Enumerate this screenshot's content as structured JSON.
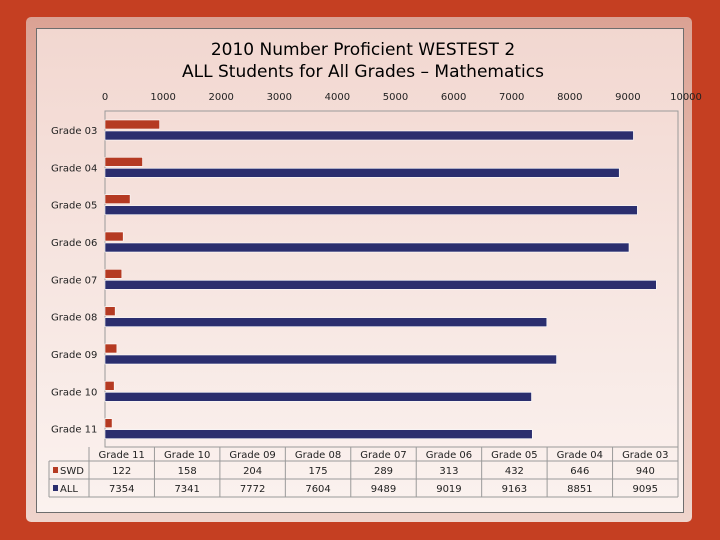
{
  "chart_data": {
    "type": "bar",
    "orientation": "horizontal",
    "title": "2010 Number Proficient WESTEST 2",
    "subtitle": "ALL Students for All Grades – Mathematics",
    "categories": [
      "Grade 11",
      "Grade 10",
      "Grade 09",
      "Grade 08",
      "Grade 07",
      "Grade 06",
      "Grade 05",
      "Grade 04",
      "Grade 03"
    ],
    "series": [
      {
        "name": "SWD",
        "values": [
          122,
          158,
          204,
          175,
          289,
          313,
          432,
          646,
          940
        ],
        "color": "#b53a22"
      },
      {
        "name": "ALL",
        "values": [
          7354,
          7341,
          7772,
          7604,
          9489,
          9019,
          9163,
          8851,
          9095
        ],
        "color": "#2b2e6e"
      }
    ],
    "xlim": [
      0,
      10000
    ],
    "x_ticks": [
      "0",
      "1000",
      "2000",
      "3000",
      "4000",
      "5000",
      "6000",
      "7000",
      "8000",
      "9000",
      "10000"
    ],
    "x_axis_position": "top",
    "legend": "data-table",
    "grid": false
  }
}
